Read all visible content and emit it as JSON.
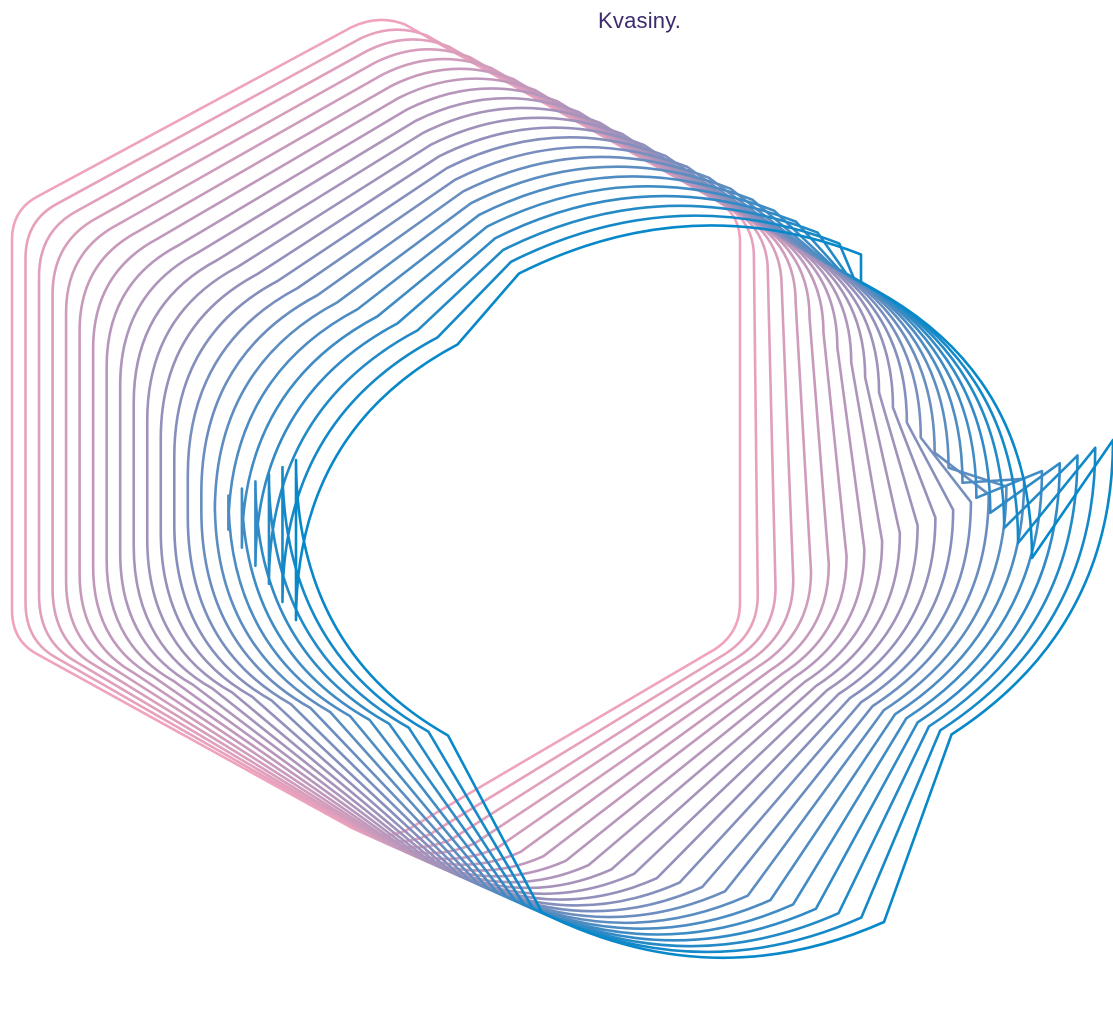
{
  "caption": "Kvasiny.",
  "graphic": {
    "name": "gradient-outline-hexagon-stack",
    "outline_count": 22,
    "color_start": "#f0a3bd",
    "color_mid": "#9a90ba",
    "color_end": "#0788c9",
    "background": "#ffffff"
  }
}
